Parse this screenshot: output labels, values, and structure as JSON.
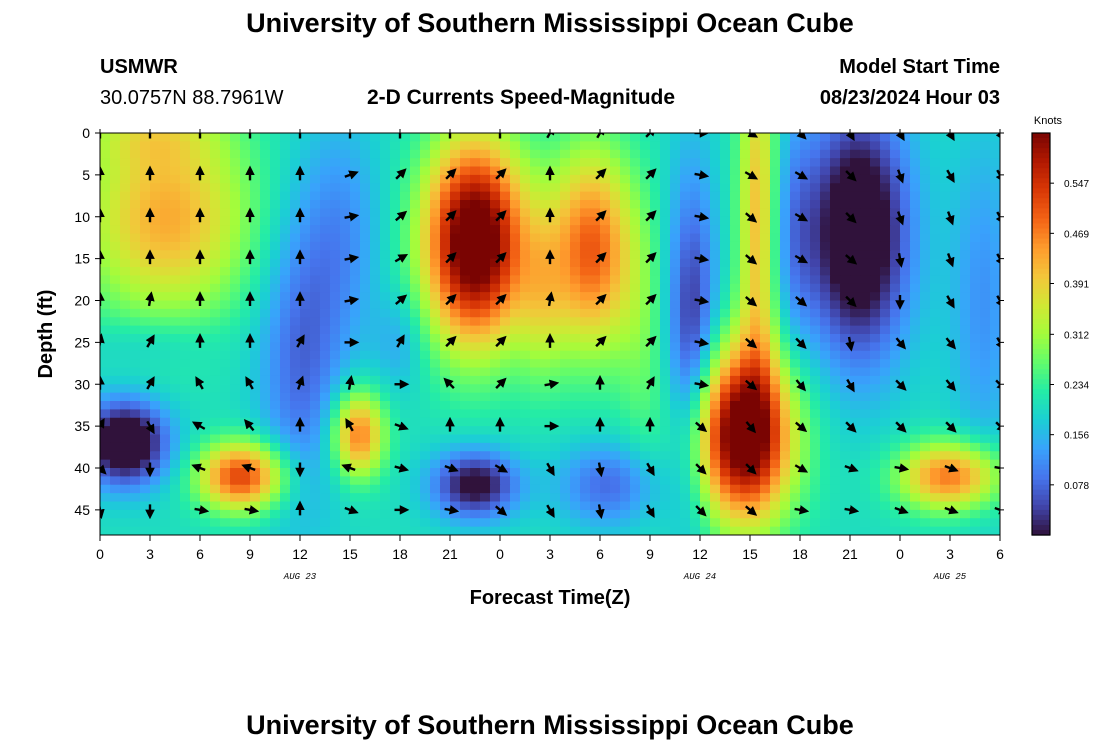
{
  "page_title": "University of Southern Mississippi Ocean Cube",
  "footer_title": "University of Southern Mississippi Ocean Cube",
  "station": {
    "name": "USMWR",
    "coords": "30.0757N  88.7961W"
  },
  "plot_title": "2-D Currents Speed-Magnitude",
  "model": {
    "label": "Model Start Time",
    "value": "08/23/2024 Hour 03"
  },
  "chart_data": {
    "type": "heatmap",
    "title": "2-D Currents Speed-Magnitude",
    "xlabel": "Forecast Time(Z)",
    "ylabel": "Depth (ft)",
    "x_tick_values": [
      0,
      3,
      6,
      9,
      12,
      15,
      18,
      21,
      24,
      27,
      30,
      33,
      36,
      39,
      42,
      45,
      48,
      51,
      54
    ],
    "x_tick_labels": [
      "0",
      "3",
      "6",
      "9",
      "12",
      "15",
      "18",
      "21",
      "0",
      "3",
      "6",
      "9",
      "12",
      "15",
      "18",
      "21",
      "0",
      "3",
      "6"
    ],
    "x_range": [
      0,
      54
    ],
    "date_labels": [
      {
        "x": 12,
        "label": "AUG 23"
      },
      {
        "x": 36,
        "label": "AUG 24"
      },
      {
        "x": 51,
        "label": "AUG 25"
      }
    ],
    "y_ticks": [
      0,
      5,
      10,
      15,
      20,
      25,
      30,
      35,
      40,
      45
    ],
    "y_range": [
      0,
      48
    ],
    "y_inverted": true,
    "colorbar": {
      "label": "Knots",
      "range": [
        0,
        0.625
      ],
      "ticks": [
        0.078,
        0.156,
        0.234,
        0.312,
        0.391,
        0.469,
        0.547
      ],
      "tick_labels": [
        "0.078",
        "0.156",
        "0.234",
        "0.312",
        "0.391",
        "0.469",
        "0.547"
      ],
      "colors": [
        "#30123b",
        "#4145ab",
        "#4675ed",
        "#39a2fc",
        "#1bcfd4",
        "#24eca6",
        "#61fc6c",
        "#a4fc3b",
        "#d1e834",
        "#f3c63a",
        "#fe9b2d",
        "#f36315",
        "#d93806",
        "#b11901",
        "#7a0402"
      ]
    },
    "speed_fields": [
      {
        "x": 4,
        "d": 10,
        "sx": 5,
        "sd": 12,
        "v": 0.23
      },
      {
        "x": 3,
        "d": 0,
        "sx": 4,
        "sd": 4,
        "v": 0.08
      },
      {
        "x": 3,
        "d": 25,
        "sx": 4,
        "sd": 3,
        "v": -0.04
      },
      {
        "x": 1.5,
        "d": 37,
        "sx": 2.5,
        "sd": 5,
        "v": -0.28
      },
      {
        "x": 8.5,
        "d": 41,
        "sx": 2.5,
        "sd": 4,
        "v": 0.33
      },
      {
        "x": 12,
        "d": 27,
        "sx": 2.5,
        "sd": 18,
        "v": -0.12
      },
      {
        "x": 14.5,
        "d": 12,
        "sx": 2.5,
        "sd": 14,
        "v": -0.08
      },
      {
        "x": 15.5,
        "d": 36,
        "sx": 1.5,
        "sd": 5,
        "v": 0.28
      },
      {
        "x": 18,
        "d": 25,
        "sx": 1.5,
        "sd": 6,
        "v": -0.06
      },
      {
        "x": 22.5,
        "d": 13,
        "sx": 3,
        "sd": 12,
        "v": 0.5
      },
      {
        "x": 22.5,
        "d": 42,
        "sx": 2.5,
        "sd": 4,
        "v": -0.22
      },
      {
        "x": 26.5,
        "d": 20,
        "sx": 1.5,
        "sd": 10,
        "v": 0.1
      },
      {
        "x": 29.5,
        "d": 14,
        "sx": 2.5,
        "sd": 12,
        "v": 0.3
      },
      {
        "x": 30.5,
        "d": 42,
        "sx": 3,
        "sd": 5,
        "v": -0.12
      },
      {
        "x": 32.5,
        "d": 24,
        "sx": 1.5,
        "sd": 15,
        "v": 0.06
      },
      {
        "x": 35.5,
        "d": 25,
        "sx": 1.5,
        "sd": 20,
        "v": -0.18
      },
      {
        "x": 38.5,
        "d": 36,
        "sx": 3,
        "sd": 10,
        "v": 0.48
      },
      {
        "x": 39.5,
        "d": 10,
        "sx": 1.2,
        "sd": 22,
        "v": 0.22
      },
      {
        "x": 41.5,
        "d": 12,
        "sx": 1.5,
        "sd": 15,
        "v": -0.08
      },
      {
        "x": 45.5,
        "d": 12,
        "sx": 3,
        "sd": 15,
        "v": -0.28
      },
      {
        "x": 51,
        "d": 41,
        "sx": 3,
        "sd": 4,
        "v": 0.28
      },
      {
        "x": 53,
        "d": 20,
        "sx": 2,
        "sd": 20,
        "v": -0.08
      }
    ],
    "speed_base": 0.2,
    "vector_grid": {
      "x_start": 0,
      "x_step": 3,
      "x_count": 19,
      "depths": [
        0,
        5,
        10,
        15,
        20,
        25,
        30,
        35,
        40,
        45
      ],
      "angle_rows": [
        [
          90,
          90,
          90,
          90,
          90,
          90,
          90,
          90,
          90,
          60,
          60,
          45,
          0,
          -30,
          -45,
          -60,
          -60,
          -60,
          -60
        ],
        [
          90,
          90,
          90,
          90,
          90,
          20,
          45,
          45,
          45,
          90,
          45,
          45,
          -10,
          -30,
          -30,
          -45,
          -70,
          -60,
          -60
        ],
        [
          90,
          90,
          90,
          90,
          90,
          10,
          40,
          45,
          45,
          90,
          45,
          45,
          -10,
          -40,
          -30,
          -45,
          -70,
          -70,
          -60
        ],
        [
          90,
          90,
          90,
          90,
          90,
          10,
          30,
          45,
          45,
          90,
          45,
          45,
          -10,
          -40,
          -30,
          -40,
          -80,
          -70,
          -60
        ],
        [
          90,
          80,
          90,
          90,
          90,
          10,
          40,
          45,
          45,
          80,
          45,
          45,
          -10,
          -40,
          -40,
          -45,
          -90,
          -60,
          -60
        ],
        [
          80,
          60,
          90,
          90,
          60,
          0,
          60,
          45,
          45,
          90,
          45,
          45,
          -10,
          -40,
          -45,
          -80,
          -50,
          -50,
          -60
        ],
        [
          90,
          60,
          120,
          120,
          70,
          80,
          0,
          135,
          45,
          10,
          90,
          60,
          -10,
          -40,
          -50,
          -60,
          -45,
          -50,
          -45
        ],
        [
          60,
          -60,
          150,
          130,
          90,
          120,
          -20,
          90,
          90,
          0,
          90,
          90,
          -40,
          -50,
          -40,
          -45,
          -45,
          -45,
          -45
        ],
        [
          -45,
          -90,
          160,
          160,
          -90,
          160,
          -15,
          -20,
          -30,
          -60,
          -80,
          -60,
          -45,
          -45,
          -30,
          -20,
          -10,
          -20,
          -10
        ],
        [
          -80,
          -90,
          -10,
          -10,
          90,
          -20,
          0,
          -10,
          -40,
          -60,
          -80,
          -60,
          -45,
          -40,
          -10,
          -10,
          -20,
          -20,
          -20
        ]
      ]
    }
  }
}
